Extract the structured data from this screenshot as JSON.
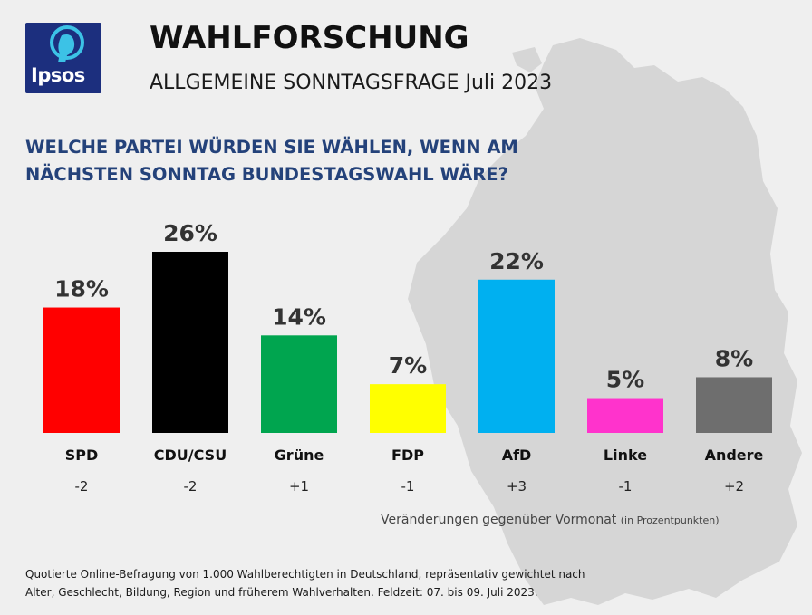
{
  "header": {
    "title": "WAHLFORSCHUNG",
    "subtitle": "ALLGEMEINE SONNTAGSFRAGE Juli 2023",
    "logo_text": "Ipsos"
  },
  "question": {
    "line1": "WELCHE PARTEI WÜRDEN SIE WÄHLEN, WENN AM",
    "line2": "NÄCHSTEN SONNTAG BUNDESTAGSWAHL WÄRE?"
  },
  "chart_data": {
    "type": "bar",
    "categories": [
      "SPD",
      "CDU/CSU",
      "Grüne",
      "FDP",
      "AfD",
      "Linke",
      "Andere"
    ],
    "values": [
      18,
      26,
      14,
      7,
      22,
      5,
      8
    ],
    "value_labels": [
      "18%",
      "26%",
      "14%",
      "7%",
      "22%",
      "5%",
      "8%"
    ],
    "changes": [
      "-2",
      "-2",
      "+1",
      "-1",
      "+3",
      "-1",
      "+2"
    ],
    "colors": [
      "#ff0000",
      "#000000",
      "#00a54f",
      "#ffff00",
      "#00b0f0",
      "#ff33cc",
      "#6e6e6e"
    ],
    "ylim": [
      0,
      26
    ],
    "grid": false
  },
  "change_note": {
    "text": "Veränderungen gegenüber Vormonat",
    "unit": "(in Prozentpunkten)"
  },
  "footnote": {
    "line1": "Quotierte Online-Befragung von 1.000 Wahlberechtigten in Deutschland, repräsentativ gewichtet nach",
    "line2": "Alter, Geschlecht, Bildung, Region und früherem Wahlverhalten. Feldzeit: 07. bis 09. Juli 2023."
  }
}
